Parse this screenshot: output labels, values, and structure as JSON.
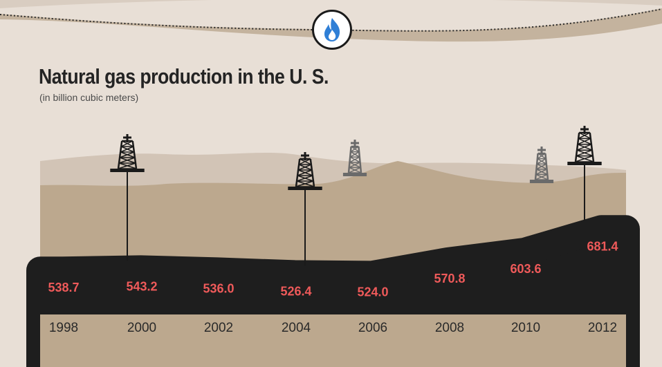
{
  "header": {
    "title": "Natural gas production in the U. S.",
    "subtitle": "(in billion cubic meters)",
    "icon": "flame-icon"
  },
  "colors": {
    "background": "#e8dfd6",
    "hill_light": "#d2c4b6",
    "hill_mid": "#bca88e",
    "ground": "#1e1e1e",
    "value_text": "#ef5a5a",
    "flame": "#2f7fd6"
  },
  "chart_data": {
    "type": "area",
    "title": "Natural gas production in the U. S.",
    "ylabel": "(in billion cubic meters)",
    "xlabel": "",
    "categories": [
      "1998",
      "2000",
      "2002",
      "2004",
      "2006",
      "2008",
      "2010",
      "2012"
    ],
    "values": [
      538.7,
      543.2,
      536.0,
      526.4,
      524.0,
      570.8,
      603.6,
      681.4
    ],
    "value_labels": [
      "538.7",
      "543.2",
      "536.0",
      "526.4",
      "524.0",
      "570.8",
      "603.6",
      "681.4"
    ],
    "ylim": [
      480,
      700
    ],
    "grid": false,
    "legend": "none"
  }
}
